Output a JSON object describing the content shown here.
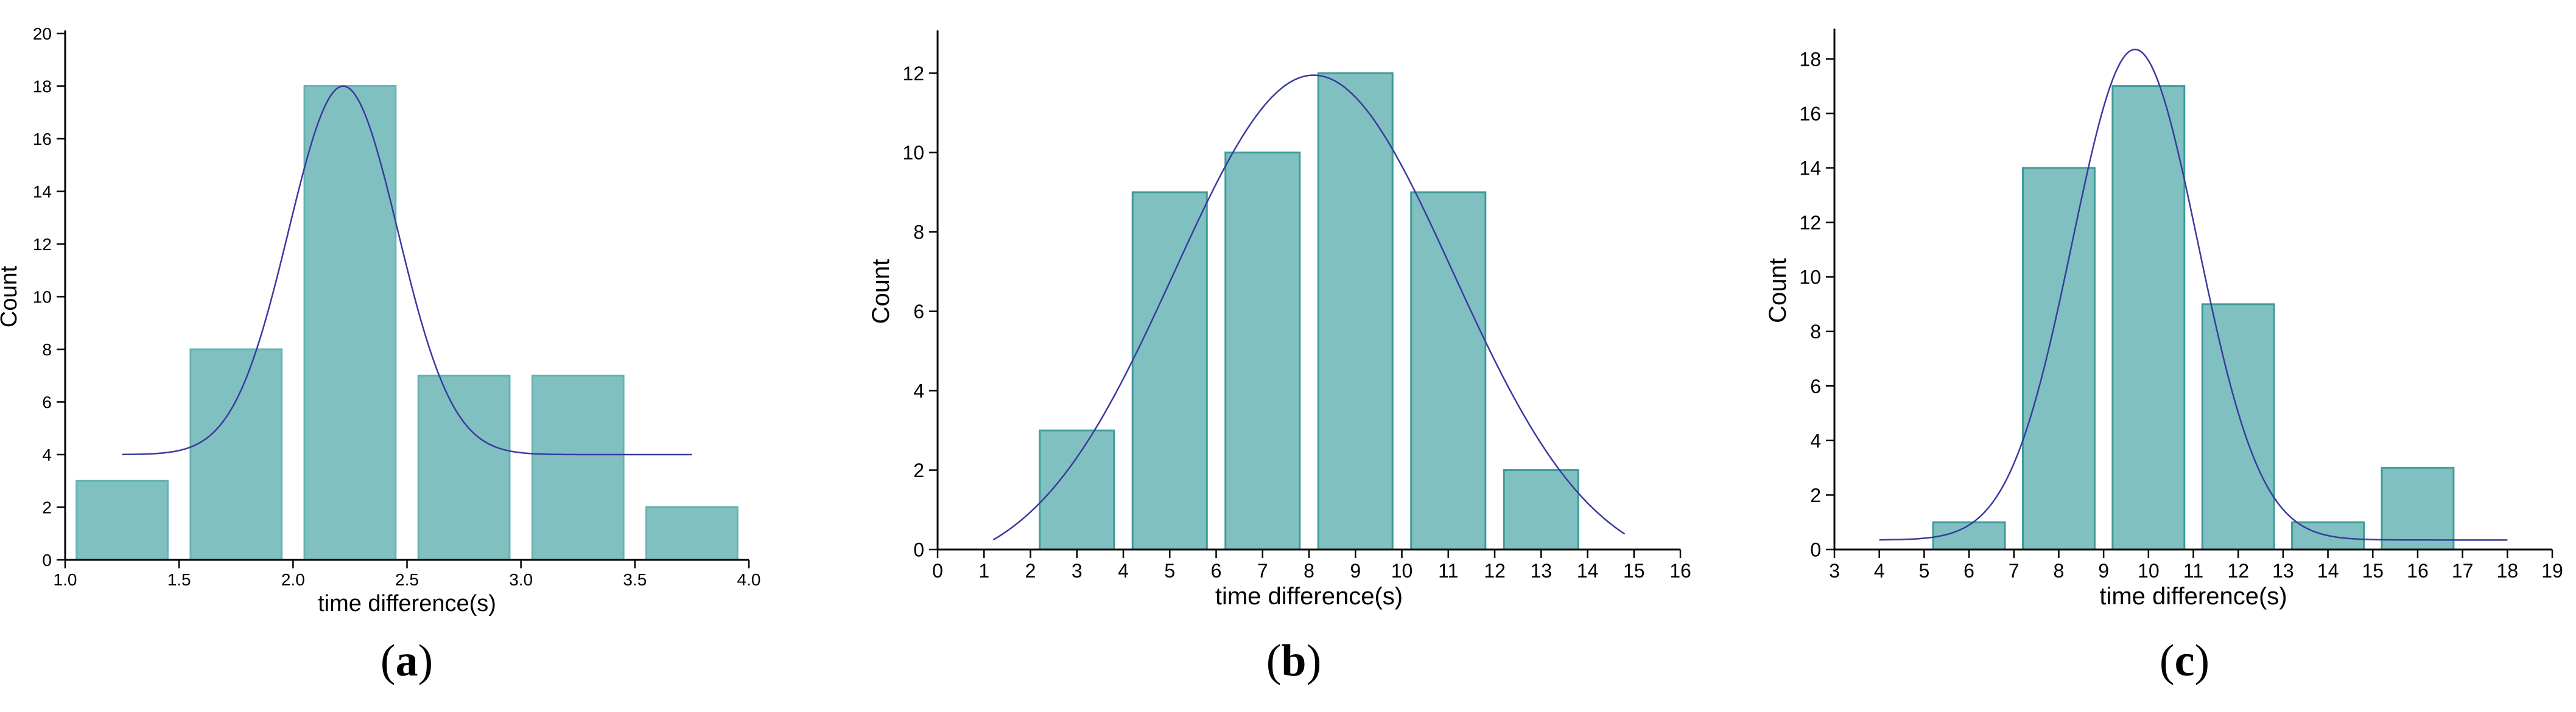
{
  "chart_data": [
    {
      "type": "bar",
      "panel_label": "a",
      "xlabel": "time difference(s)",
      "ylabel": "Count",
      "xlim": [
        1.0,
        4.0
      ],
      "ylim": [
        0,
        20
      ],
      "xticks": [
        "1.0",
        "1.5",
        "2.0",
        "2.5",
        "3.0",
        "3.5",
        "4.0"
      ],
      "yticks": [
        "0",
        "2",
        "4",
        "6",
        "8",
        "10",
        "12",
        "14",
        "16",
        "18",
        "20"
      ],
      "bars": [
        {
          "x0": 1.05,
          "x1": 1.45,
          "value": 3
        },
        {
          "x0": 1.55,
          "x1": 1.95,
          "value": 8
        },
        {
          "x0": 2.05,
          "x1": 2.45,
          "value": 18
        },
        {
          "x0": 2.55,
          "x1": 2.95,
          "value": 7
        },
        {
          "x0": 3.05,
          "x1": 3.45,
          "value": 7
        },
        {
          "x0": 3.55,
          "x1": 3.95,
          "value": 2
        }
      ],
      "fit_curve": {
        "type": "gaussian",
        "mean": 2.22,
        "sd": 0.24,
        "amplitude": 14,
        "baseline": 4,
        "x_start": 1.25,
        "x_end": 3.75
      },
      "bar_fill": "#81C0C0",
      "bar_stroke": "#66B3B3",
      "curve_color": "#3A3AA0",
      "grid": false
    },
    {
      "type": "bar",
      "panel_label": "b",
      "xlabel": "time difference(s)",
      "ylabel": "Count",
      "xlim": [
        0,
        16
      ],
      "ylim": [
        0,
        13
      ],
      "xticks": [
        "0",
        "1",
        "2",
        "3",
        "4",
        "5",
        "6",
        "7",
        "8",
        "9",
        "10",
        "11",
        "12",
        "13",
        "14",
        "15",
        "16"
      ],
      "yticks": [
        "0",
        "2",
        "4",
        "6",
        "8",
        "10",
        "12"
      ],
      "bars": [
        {
          "x0": 2.2,
          "x1": 3.8,
          "value": 3
        },
        {
          "x0": 4.2,
          "x1": 5.8,
          "value": 9
        },
        {
          "x0": 6.2,
          "x1": 7.8,
          "value": 10
        },
        {
          "x0": 8.2,
          "x1": 9.8,
          "value": 12
        },
        {
          "x0": 10.2,
          "x1": 11.8,
          "value": 9
        },
        {
          "x0": 12.2,
          "x1": 13.8,
          "value": 2
        }
      ],
      "fit_curve": {
        "type": "gaussian",
        "mean": 8.1,
        "sd": 3.0,
        "amplitude": 12.6,
        "baseline": -0.65,
        "x_start": 1.2,
        "x_end": 14.8
      },
      "bar_fill": "#81C0C0",
      "bar_stroke": "#3E9A9A",
      "curve_color": "#3A3AA0",
      "grid": false
    },
    {
      "type": "bar",
      "panel_label": "c",
      "xlabel": "time difference(s)",
      "ylabel": "Count",
      "xlim": [
        3,
        19
      ],
      "ylim": [
        0,
        19
      ],
      "xticks": [
        "3",
        "4",
        "5",
        "6",
        "7",
        "8",
        "9",
        "10",
        "11",
        "12",
        "13",
        "14",
        "15",
        "16",
        "17",
        "18",
        "19"
      ],
      "yticks": [
        "0",
        "2",
        "4",
        "6",
        "8",
        "10",
        "12",
        "14",
        "16",
        "18"
      ],
      "bars": [
        {
          "x0": 5.2,
          "x1": 6.8,
          "value": 1
        },
        {
          "x0": 7.2,
          "x1": 8.8,
          "value": 14
        },
        {
          "x0": 9.2,
          "x1": 10.8,
          "value": 17
        },
        {
          "x0": 11.2,
          "x1": 12.8,
          "value": 9
        },
        {
          "x0": 13.2,
          "x1": 14.8,
          "value": 1
        },
        {
          "x0": 15.2,
          "x1": 16.8,
          "value": 3
        }
      ],
      "fit_curve": {
        "type": "gaussian",
        "mean": 9.7,
        "sd": 1.4,
        "amplitude": 18,
        "baseline": 0.35,
        "x_start": 4.0,
        "x_end": 18.0
      },
      "bar_fill": "#81C0C0",
      "bar_stroke": "#3E9A9A",
      "curve_color": "#3A3AA0",
      "grid": false
    }
  ]
}
